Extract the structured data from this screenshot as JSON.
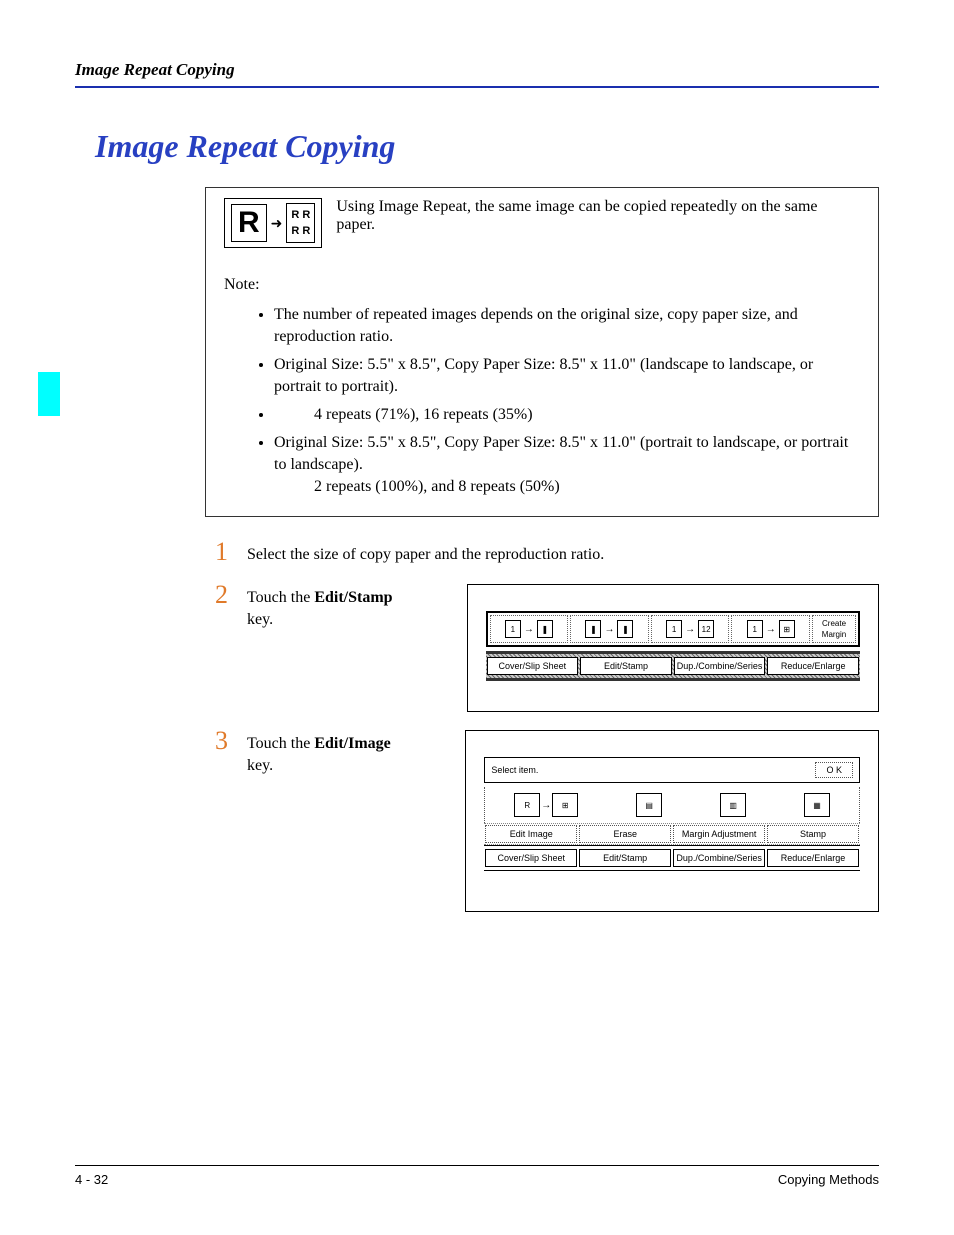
{
  "header": {
    "running_title": "Image Repeat Copying"
  },
  "title": "Image Repeat Copying",
  "colors": {
    "rule": "#1a2fae",
    "title": "#2840c2",
    "tab": "#00ffff",
    "step_num": "#e07a2a"
  },
  "icon": {
    "big_letter": "R",
    "grid_line1": "R  R",
    "grid_line2": "R  R"
  },
  "intro": "Using Image Repeat, the same image can be copied repeatedly on the same paper.",
  "note_label": "Note:",
  "notes": [
    "The number of repeated images depends on the original size, copy paper size, and reproduction ratio.",
    "Original Size: 5.5\" x 8.5\", Copy Paper Size: 8.5\" x 11.0\" (landscape to landscape, or portrait to portrait).",
    "4 repeats (71%), 16 repeats (35%)",
    "Original Size: 5.5\" x 8.5\", Copy Paper Size: 8.5\" x 11.0\" (portrait to landscape, or portrait to landscape)."
  ],
  "note_tail": "2 repeats (100%), and 8 repeats (50%)",
  "steps": {
    "s1": {
      "num": "1",
      "text": "Select the size of copy paper and the reproduction ratio."
    },
    "s2": {
      "num": "2",
      "pre": "Touch the ",
      "bold": "Edit/Stamp",
      "post": " key."
    },
    "s3": {
      "num": "3",
      "pre": "Touch the ",
      "bold": "Edit/Image",
      "post": " key."
    }
  },
  "panelA": {
    "create_margin": "Create Margin",
    "tabs": [
      "Cover/Slip Sheet",
      "Edit/Stamp",
      "Dup./Combine/Series",
      "Reduce/Enlarge"
    ]
  },
  "panelB": {
    "select_item": "Select item.",
    "ok": "O K",
    "btns": [
      "Edit Image",
      "Erase",
      "Margin Adjustment",
      "Stamp"
    ],
    "tabs": [
      "Cover/Slip Sheet",
      "Edit/Stamp",
      "Dup./Combine/Series",
      "Reduce/Enlarge"
    ]
  },
  "footer": {
    "left": "4 - 32",
    "right": "Copying Methods"
  }
}
